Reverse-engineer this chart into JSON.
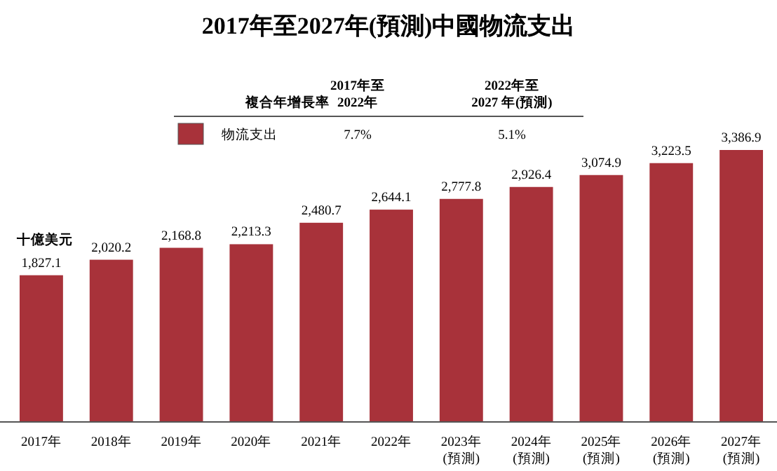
{
  "chart_data": {
    "type": "bar",
    "title": "2017年至2027年(預測)中國物流支出",
    "ylabel": "十億美元",
    "categories": [
      "2017年",
      "2018年",
      "2019年",
      "2020年",
      "2021年",
      "2022年",
      "2023年\n(預測)",
      "2024年\n(預測)",
      "2025年\n(預測)",
      "2026年\n(預測)",
      "2027年\n(預測)"
    ],
    "series": [
      {
        "name": "物流支出",
        "color": "#a8323a",
        "values": [
          1827.1,
          2020.2,
          2168.8,
          2213.3,
          2480.7,
          2644.1,
          2777.8,
          2926.4,
          3074.9,
          3223.5,
          3386.9
        ],
        "value_labels": [
          "1,827.1",
          "2,020.2",
          "2,168.8",
          "2,213.3",
          "2,480.7",
          "2,644.1",
          "2,777.8",
          "2,926.4",
          "3,074.9",
          "3,223.5",
          "3,386.9"
        ]
      }
    ],
    "annotations": [
      "複合年增長率",
      "2017年至\n2022年",
      "2022年至\n2027 年(預測)",
      "7.7%",
      "5.1%"
    ],
    "legend": "top"
  }
}
